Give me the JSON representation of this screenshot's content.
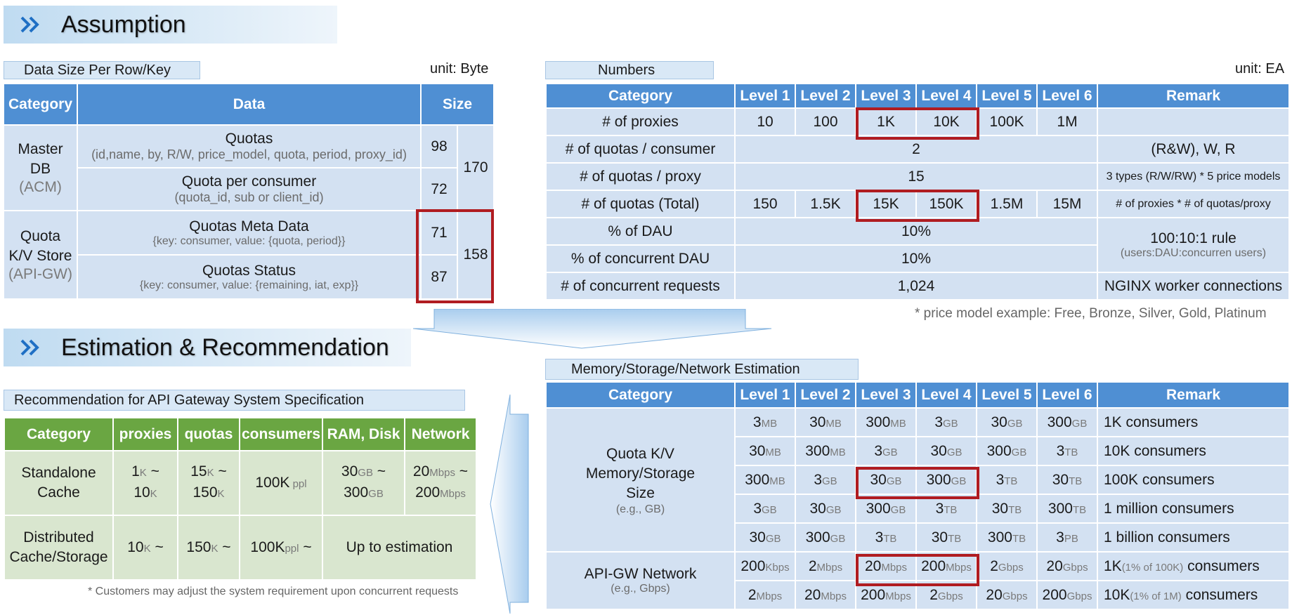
{
  "assumption": {
    "title": "Assumption",
    "datasize": {
      "caption": "Data Size Per Row/Key",
      "unit": "unit: Byte",
      "headers": [
        "Category",
        "Data",
        "Size"
      ],
      "master_db": {
        "name": "Master DB",
        "sub": "(ACM)"
      },
      "quota_kv": {
        "name": "Quota K/V Store",
        "sub": "(API-GW)"
      },
      "rows": [
        {
          "data": "Quotas",
          "detail": "(id,name, by, R/W, price_model, quota, period, proxy_id)",
          "size": "98"
        },
        {
          "data": "Quota per consumer",
          "detail": "(quota_id, sub or client_id)",
          "size": "72"
        },
        {
          "data": "Quotas Meta Data",
          "detail": "{key: consumer, value: {quota, period}}",
          "size": "71"
        },
        {
          "data": "Quotas Status",
          "detail": "{key: consumer, value: {remaining, iat, exp}}",
          "size": "87"
        }
      ],
      "sum_master": "170",
      "sum_kv": "158"
    },
    "numbers": {
      "caption": "Numbers",
      "unit": "unit: EA",
      "headers": [
        "Category",
        "Level 1",
        "Level 2",
        "Level 3",
        "Level 4",
        "Level 5",
        "Level 6",
        "Remark"
      ],
      "rows": {
        "proxies": {
          "label": "# of proxies",
          "values": [
            "10",
            "100",
            "1K",
            "10K",
            "100K",
            "1M"
          ]
        },
        "quotas_consumer": {
          "label": "# of quotas / consumer",
          "value": "2",
          "remark": "(R&W), W, R"
        },
        "quotas_proxy": {
          "label": "# of quotas / proxy",
          "value": "15",
          "remark": "3 types (R/W/RW) * 5 price models"
        },
        "quotas_total": {
          "label": "# of quotas (Total)",
          "values": [
            "150",
            "1.5K",
            "15K",
            "150K",
            "1.5M",
            "15M"
          ],
          "remark": "# of proxies * # of quotas/proxy"
        },
        "dau": {
          "label": "% of DAU",
          "value": "10%"
        },
        "concurrent_dau": {
          "label": "% of concurrent DAU",
          "value": "10%"
        },
        "rule": {
          "main": "100:10:1 rule",
          "sub": "(users:DAU:concurren users)"
        },
        "concurrent_req": {
          "label": "# of concurrent requests",
          "value": "1,024",
          "remark": "NGINX worker connections"
        }
      },
      "footnote": "* price model example: Free, Bronze, Silver, Gold, Platinum"
    }
  },
  "estimation": {
    "title": "Estimation & Recommendation",
    "recommendation": {
      "caption": "Recommendation for API Gateway System Specification",
      "headers": [
        "Category",
        "proxies",
        "quotas",
        "consumers",
        "RAM, Disk",
        "Network"
      ],
      "standalone": {
        "name": "Standalone Cache",
        "proxies": {
          "a": "1",
          "au": "K",
          "sep": " ~",
          "b": "10",
          "bu": "K"
        },
        "quotas": {
          "a": "15",
          "au": "K",
          "sep": " ~",
          "b": "150",
          "bu": "K"
        },
        "consumers": {
          "v": "100K",
          "u": " ppl"
        },
        "ram": {
          "a": "30",
          "au": "GB",
          "sep": " ~",
          "b": "300",
          "bu": "GB"
        },
        "network": {
          "a": "20",
          "au": "Mbps",
          "sep": " ~",
          "b": "200",
          "bu": "Mbps"
        }
      },
      "distributed": {
        "name": "Distributed Cache/Storage",
        "proxies": {
          "v": "10",
          "u": "K",
          "s": " ~"
        },
        "quotas": {
          "v": "150",
          "u": "K",
          "s": " ~"
        },
        "consumers": {
          "v": "100K",
          "u": "ppl",
          "s": " ~"
        },
        "ram_network": "Up to estimation"
      },
      "footnote": "* Customers may adjust the system requirement upon concurrent requests"
    },
    "memory": {
      "caption": "Memory/Storage/Network Estimation",
      "headers": [
        "Category",
        "Level 1",
        "Level 2",
        "Level 3",
        "Level 4",
        "Level 5",
        "Level 6",
        "Remark"
      ],
      "kv_label": "Quota K/V Memory/Storage Size",
      "kv_sub": "(e.g., GB)",
      "kv_rows": [
        {
          "cells": [
            [
              "3",
              "MB"
            ],
            [
              "30",
              "MB"
            ],
            [
              "300",
              "MB"
            ],
            [
              "3",
              "GB"
            ],
            [
              "30",
              "GB"
            ],
            [
              "300",
              "GB"
            ]
          ],
          "remark": "1K consumers"
        },
        {
          "cells": [
            [
              "30",
              "MB"
            ],
            [
              "300",
              "MB"
            ],
            [
              "3",
              "GB"
            ],
            [
              "30",
              "GB"
            ],
            [
              "300",
              "GB"
            ],
            [
              "3",
              "TB"
            ]
          ],
          "remark": "10K consumers"
        },
        {
          "cells": [
            [
              "300",
              "MB"
            ],
            [
              "3",
              "GB"
            ],
            [
              "30",
              "GB"
            ],
            [
              "300",
              "GB"
            ],
            [
              "3",
              "TB"
            ],
            [
              "30",
              "TB"
            ]
          ],
          "remark": "100K consumers"
        },
        {
          "cells": [
            [
              "3",
              "GB"
            ],
            [
              "30",
              "GB"
            ],
            [
              "300",
              "GB"
            ],
            [
              "3",
              "TB"
            ],
            [
              "30",
              "TB"
            ],
            [
              "300",
              "TB"
            ]
          ],
          "remark": "1 million consumers"
        },
        {
          "cells": [
            [
              "30",
              "GB"
            ],
            [
              "300",
              "GB"
            ],
            [
              "3",
              "TB"
            ],
            [
              "30",
              "TB"
            ],
            [
              "300",
              "TB"
            ],
            [
              "3",
              "PB"
            ]
          ],
          "remark": "1 billion consumers"
        }
      ],
      "net_label": "API-GW Network",
      "net_sub": "(e.g., Gbps)",
      "net_rows": [
        {
          "cells": [
            [
              "200",
              "Kbps"
            ],
            [
              "2",
              "Mbps"
            ],
            [
              "20",
              "Mbps"
            ],
            [
              "200",
              "Mbps"
            ],
            [
              "2",
              "Gbps"
            ],
            [
              "20",
              "Gbps"
            ]
          ],
          "remark_a": "1K",
          "remark_b": "(1% of 100K)",
          "remark_c": " consumers"
        },
        {
          "cells": [
            [
              "2",
              "Mbps"
            ],
            [
              "20",
              "Mbps"
            ],
            [
              "200",
              "Mbps"
            ],
            [
              "2",
              "Gbps"
            ],
            [
              "20",
              "Gbps"
            ],
            [
              "200",
              "Gbps"
            ]
          ],
          "remark_a": "10K",
          "remark_b": "(1% of 1M)",
          "remark_c": " consumers"
        }
      ]
    }
  },
  "colors": {
    "header_blue": "#4f8fd3",
    "cell_blue": "#d3e1f2",
    "header_green": "#6aa642",
    "cell_green": "#d9e6cf",
    "highlight_red": "#b01c21"
  },
  "icons": {
    "banner": "double-chevron-right-icon"
  }
}
